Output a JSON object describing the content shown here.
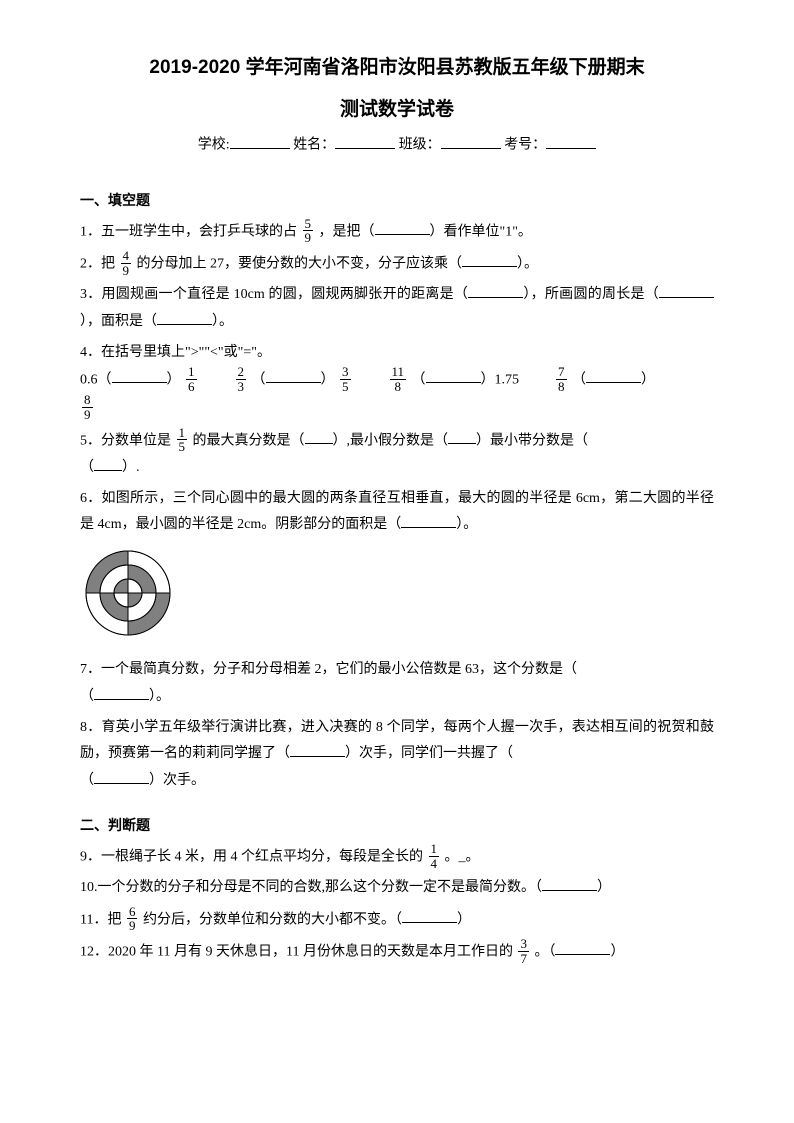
{
  "title_line1": "2019-2020 学年河南省洛阳市汝阳县苏教版五年级下册期末",
  "title_line2": "测试数学试卷",
  "info": {
    "school_label": "学校:",
    "name_label": "姓名：",
    "class_label": "班级：",
    "exam_no_label": "考号："
  },
  "section1": "一、填空题",
  "q1a": "1．五一班学生中，会打乒乓球的占",
  "q1_frac": {
    "n": "5",
    "d": "9"
  },
  "q1b": "，是把（",
  "q1c": "）看作单位\"1\"。",
  "q2a": "2．把",
  "q2_frac": {
    "n": "4",
    "d": "9"
  },
  "q2b": "的分母加上 27，要使分数的大小不变，分子应该乘（",
  "q2c": "）。",
  "q3a": "3．用圆规画一个直径是 10cm 的圆，圆规两脚张开的距离是（",
  "q3b": "），所画圆的周长是（",
  "q3c": "），面积是（",
  "q3d": "）。",
  "q4a": "4．在括号里填上\">\"\"<\"或\"=\"。",
  "q4_r1_v1": "0.6（",
  "q4_r1_f1": {
    "n": "1",
    "d": "6"
  },
  "q4_r1_f2": {
    "n": "2",
    "d": "3"
  },
  "q4_r1_f3": {
    "n": "3",
    "d": "5"
  },
  "q4_r1_f4": {
    "n": "11",
    "d": "8"
  },
  "q4_r1_v175": "）1.75",
  "q4_r1_f5": {
    "n": "7",
    "d": "8"
  },
  "q4_r2_f": {
    "n": "8",
    "d": "9"
  },
  "q5a": "5．分数单位是",
  "q5_frac": {
    "n": "1",
    "d": "5"
  },
  "q5b": "的最大真分数是（",
  "q5c": "）,最小假分数是（",
  "q5d": "）最小带分数是（",
  "q5e": "）.",
  "q6a": "6．如图所示，三个同心圆中的最大圆的两条直径互相垂直，最大的圆的半径是 6cm，第二大圆的半径是 4cm，最小圆的半径是 2cm。阴影部分的面积是（",
  "q6b": "）。",
  "diagram": {
    "outer_r": 42,
    "mid_r": 28,
    "inner_r": 14,
    "colors": {
      "shade": "#808080",
      "white": "#ffffff",
      "stroke": "#000000"
    }
  },
  "q7a": "7．一个最简真分数，分子和分母相差 2，它们的最小公倍数是 63，这个分数是（",
  "q7b": "）。",
  "q8a": "8．育英小学五年级举行演讲比赛，进入决赛的 8 个同学，每两个人握一次手，表达相互间的祝贺和鼓励，预赛第一名的莉莉同学握了（",
  "q8b": "）次手，同学们一共握了（",
  "q8c": "）次手。",
  "section2": "二、判断题",
  "q9a": "9．一根绳子长 4 米，用 4 个红点平均分，每段是全长的",
  "q9_frac": {
    "n": "1",
    "d": "4"
  },
  "q9b": "。_。",
  "q10a": "10.一个分数的分子和分母是不同的合数,那么这个分数一定不是最简分数。（",
  "q10b": "）",
  "q11a": "11．把",
  "q11_frac": {
    "n": "6",
    "d": "9"
  },
  "q11b": "约分后，分数单位和分数的大小都不变。（",
  "q11c": "）",
  "q12a": "12．2020 年 11 月有 9 天休息日，11 月份休息日的天数是本月工作日的",
  "q12_frac": {
    "n": "3",
    "d": "7"
  },
  "q12b": "。（",
  "q12c": "）"
}
